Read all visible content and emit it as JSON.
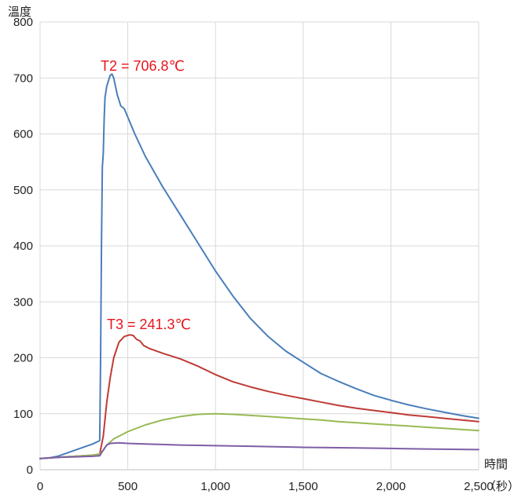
{
  "chart_data": {
    "type": "line",
    "ylabel": "溫度",
    "xlabel_line1": "時間",
    "xlabel_line2": "（秒）",
    "xlim": [
      0,
      2500
    ],
    "ylim": [
      0,
      800
    ],
    "x_tick_labels": [
      "0",
      "500",
      "1,000",
      "1,500",
      "2,000",
      "2,500"
    ],
    "y_tick_labels": [
      "0",
      "100",
      "200",
      "300",
      "400",
      "500",
      "600",
      "700",
      "800"
    ],
    "x_ticks": [
      0,
      500,
      1000,
      1500,
      2000,
      2500
    ],
    "y_ticks": [
      0,
      100,
      200,
      300,
      400,
      500,
      600,
      700,
      800
    ],
    "grid": true,
    "annotations": [
      {
        "text": "T2 = 706.8℃",
        "x": 400,
        "y": 707,
        "color": "#e8141c"
      },
      {
        "text": "T3 = 241.3℃",
        "x": 500,
        "y": 241,
        "color": "#e8141c"
      }
    ],
    "series": [
      {
        "color": "#4a7ebb",
        "points": [
          [
            0,
            20
          ],
          [
            50,
            21
          ],
          [
            100,
            24
          ],
          [
            200,
            35
          ],
          [
            300,
            46
          ],
          [
            340,
            52
          ],
          [
            345,
            200
          ],
          [
            350,
            400
          ],
          [
            355,
            540
          ],
          [
            360,
            565
          ],
          [
            365,
            625
          ],
          [
            370,
            665
          ],
          [
            380,
            685
          ],
          [
            390,
            695
          ],
          [
            400,
            705
          ],
          [
            410,
            707
          ],
          [
            420,
            700
          ],
          [
            440,
            670
          ],
          [
            460,
            650
          ],
          [
            480,
            645
          ],
          [
            500,
            630
          ],
          [
            540,
            600
          ],
          [
            600,
            560
          ],
          [
            700,
            505
          ],
          [
            800,
            455
          ],
          [
            900,
            405
          ],
          [
            1000,
            355
          ],
          [
            1100,
            310
          ],
          [
            1200,
            270
          ],
          [
            1300,
            238
          ],
          [
            1400,
            212
          ],
          [
            1500,
            192
          ],
          [
            1600,
            172
          ],
          [
            1700,
            158
          ],
          [
            1800,
            145
          ],
          [
            1900,
            133
          ],
          [
            2000,
            124
          ],
          [
            2100,
            116
          ],
          [
            2200,
            109
          ],
          [
            2300,
            103
          ],
          [
            2400,
            97
          ],
          [
            2500,
            92
          ]
        ]
      },
      {
        "color": "#be3b36",
        "points": [
          [
            0,
            20
          ],
          [
            100,
            22
          ],
          [
            200,
            24
          ],
          [
            300,
            26
          ],
          [
            340,
            28
          ],
          [
            360,
            60
          ],
          [
            380,
            120
          ],
          [
            400,
            165
          ],
          [
            420,
            200
          ],
          [
            450,
            228
          ],
          [
            480,
            238
          ],
          [
            510,
            241
          ],
          [
            530,
            240
          ],
          [
            550,
            233
          ],
          [
            570,
            230
          ],
          [
            590,
            222
          ],
          [
            620,
            217
          ],
          [
            700,
            208
          ],
          [
            800,
            198
          ],
          [
            900,
            185
          ],
          [
            1000,
            170
          ],
          [
            1100,
            157
          ],
          [
            1200,
            148
          ],
          [
            1300,
            140
          ],
          [
            1400,
            133
          ],
          [
            1500,
            127
          ],
          [
            1600,
            121
          ],
          [
            1700,
            115
          ],
          [
            1800,
            110
          ],
          [
            1900,
            106
          ],
          [
            2000,
            102
          ],
          [
            2100,
            98
          ],
          [
            2200,
            95
          ],
          [
            2300,
            92
          ],
          [
            2400,
            89
          ],
          [
            2500,
            86
          ]
        ]
      },
      {
        "color": "#98b953",
        "points": [
          [
            0,
            20
          ],
          [
            100,
            22
          ],
          [
            200,
            24
          ],
          [
            300,
            26
          ],
          [
            340,
            28
          ],
          [
            360,
            35
          ],
          [
            380,
            44
          ],
          [
            420,
            55
          ],
          [
            500,
            68
          ],
          [
            600,
            80
          ],
          [
            700,
            89
          ],
          [
            800,
            95
          ],
          [
            900,
            99
          ],
          [
            1000,
            100
          ],
          [
            1100,
            99
          ],
          [
            1200,
            97
          ],
          [
            1300,
            95
          ],
          [
            1400,
            93
          ],
          [
            1500,
            91
          ],
          [
            1600,
            89
          ],
          [
            1700,
            86
          ],
          [
            1800,
            84
          ],
          [
            1900,
            82
          ],
          [
            2000,
            80
          ],
          [
            2100,
            78
          ],
          [
            2200,
            76
          ],
          [
            2300,
            74
          ],
          [
            2400,
            72
          ],
          [
            2500,
            70
          ]
        ]
      },
      {
        "color": "#7e5ea6",
        "points": [
          [
            0,
            20
          ],
          [
            100,
            22
          ],
          [
            200,
            23
          ],
          [
            300,
            24
          ],
          [
            340,
            25
          ],
          [
            360,
            35
          ],
          [
            380,
            44
          ],
          [
            400,
            47
          ],
          [
            450,
            48
          ],
          [
            500,
            47
          ],
          [
            600,
            46
          ],
          [
            700,
            45
          ],
          [
            800,
            44
          ],
          [
            1000,
            43
          ],
          [
            1200,
            42
          ],
          [
            1500,
            40
          ],
          [
            1800,
            39
          ],
          [
            2000,
            38
          ],
          [
            2200,
            37
          ],
          [
            2500,
            36
          ]
        ]
      }
    ]
  }
}
